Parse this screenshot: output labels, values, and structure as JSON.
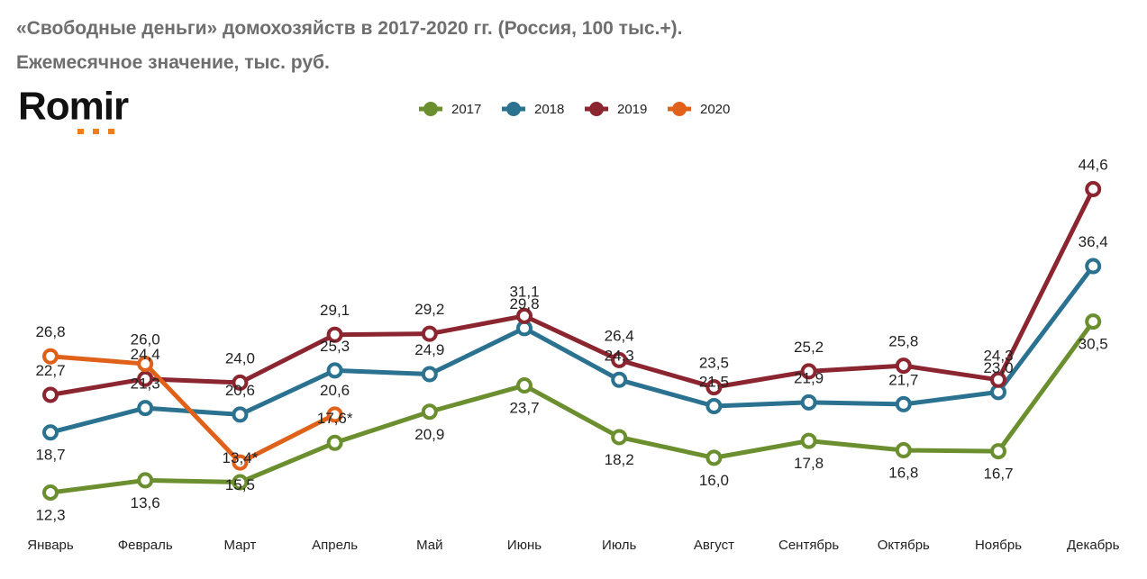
{
  "chart_data": {
    "type": "line",
    "title": "«Свободные деньги» домохозяйств в 2017-2020 гг. (Россия, 100 тыс.+).",
    "subtitle": "Ежемесячное значение, тыс. руб.",
    "brand": "Romir",
    "categories": [
      "Январь",
      "Февраль",
      "Март",
      "Апрель",
      "Май",
      "Июнь",
      "Июль",
      "Август",
      "Сентябрь",
      "Октябрь",
      "Ноябрь",
      "Декабрь"
    ],
    "series": [
      {
        "name": "2017",
        "color": "#6b8e2f",
        "values": [
          12.3,
          13.6,
          13.4,
          17.6,
          20.9,
          23.7,
          18.2,
          16.0,
          17.8,
          16.8,
          16.7,
          30.5
        ],
        "value_labels": [
          "12,3",
          "13,6",
          "13,4*",
          "17,6*",
          "20,9",
          "23,7",
          "18,2",
          "16,0",
          "17,8",
          "16,8",
          "16,7",
          "30,5"
        ]
      },
      {
        "name": "2018",
        "color": "#2a7290",
        "values": [
          18.7,
          21.3,
          20.6,
          25.3,
          24.9,
          29.8,
          24.3,
          21.5,
          21.9,
          21.7,
          23.0,
          36.4
        ],
        "value_labels": [
          "18,7",
          "21,3",
          "20,6",
          "25,3",
          "24,9",
          "29,8",
          "24,3",
          "21,5",
          "21,9",
          "21,7",
          "23,0",
          "36,4"
        ]
      },
      {
        "name": "2019",
        "color": "#8b2530",
        "values": [
          22.7,
          24.4,
          24.0,
          29.1,
          29.2,
          31.1,
          26.4,
          23.5,
          25.2,
          25.8,
          24.3,
          44.6
        ],
        "value_labels": [
          "22,7",
          "24,4",
          "24,0",
          "29,1",
          "29,2",
          "31,1",
          "26,4",
          "23,5",
          "25,2",
          "25,8",
          "24,3",
          "44,6"
        ]
      },
      {
        "name": "2020",
        "color": "#e0621a",
        "values": [
          26.8,
          26.0,
          15.5,
          20.6,
          null,
          null,
          null,
          null,
          null,
          null,
          null,
          null
        ],
        "value_labels": [
          "26,8",
          "26,0",
          "15,5",
          "20,6",
          null,
          null,
          null,
          null,
          null,
          null,
          null,
          null
        ]
      }
    ]
  }
}
